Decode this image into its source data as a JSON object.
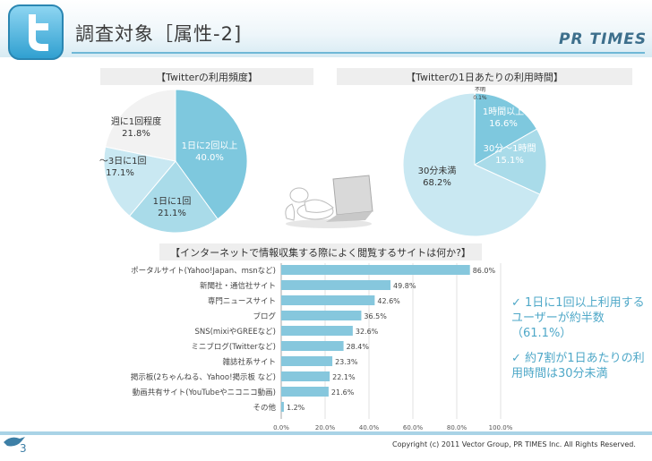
{
  "header": {
    "title": "調査対象［属性-2]",
    "brand": "PR TIMES"
  },
  "chart_data": [
    {
      "type": "pie",
      "title": "【Twitterの利用頻度】",
      "slices": [
        {
          "label": "1日に2回以上",
          "value": 40.0,
          "display": "40.0%",
          "color": "#7ec8de"
        },
        {
          "label": "1日に1回",
          "value": 21.1,
          "display": "21.1%",
          "color": "#a9dbe9"
        },
        {
          "label": "2〜3日に1回",
          "value": 17.1,
          "display": "17.1%",
          "color": "#c9e8f2"
        },
        {
          "label": "週に1回程度",
          "value": 21.8,
          "display": "21.8%",
          "color": "#f2f2f2"
        }
      ]
    },
    {
      "type": "pie",
      "title": "【Twitterの1日あたりの利用時間】",
      "slices": [
        {
          "label": "不明",
          "value": 0.1,
          "display": "0.1%",
          "color": "#e3e3e3"
        },
        {
          "label": "1時間以上",
          "value": 16.6,
          "display": "16.6%",
          "color": "#7ec8de"
        },
        {
          "label": "30分〜1時間",
          "value": 15.1,
          "display": "15.1%",
          "color": "#a9dbe9"
        },
        {
          "label": "30分未満",
          "value": 68.2,
          "display": "68.2%",
          "color": "#c9e8f2"
        }
      ]
    },
    {
      "type": "bar",
      "orientation": "horizontal",
      "title": "【インターネットで情報収集する際によく閲覧するサイトは何か?】",
      "categories": [
        "ポータルサイト(Yahoo!Japan、msnなど)",
        "新聞社・通信社サイト",
        "専門ニュースサイト",
        "ブログ",
        "SNS(mixiやGREEなど)",
        "ミニブログ(Twitterなど)",
        "雑誌社系サイト",
        "掲示板(2ちゃんねる、Yahoo!掲示板 など)",
        "動画共有サイト(YouTubeやニコニコ動画)",
        "その他"
      ],
      "values": [
        86.0,
        49.8,
        42.6,
        36.5,
        32.6,
        28.4,
        23.3,
        22.1,
        21.6,
        1.2
      ],
      "value_labels": [
        "86.0%",
        "49.8%",
        "42.6%",
        "36.5%",
        "32.6%",
        "28.4%",
        "23.3%",
        "22.1%",
        "21.6%",
        "1.2%"
      ],
      "xlim": [
        0,
        100
      ],
      "xticks": [
        "0.0%",
        "20.0%",
        "40.0%",
        "60.0%",
        "80.0%",
        "100.0%"
      ],
      "bar_color": "#86c7dd"
    }
  ],
  "summary": [
    "✓ 1日に1回以上利用するユーザーが約半数（61.1%）",
    "✓ 約7割が1日あたりの利用時間は30分未満"
  ],
  "footer": {
    "copyright": "Copyright (c) 2011 Vector Group, PR TIMES Inc. All Rights Reserved.",
    "page": "3"
  }
}
